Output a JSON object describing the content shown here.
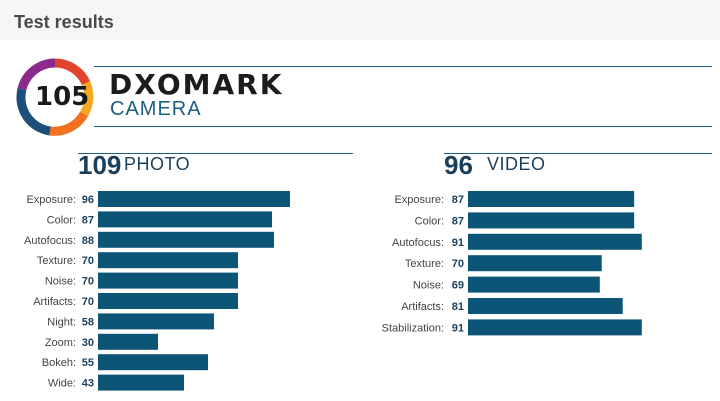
{
  "page": {
    "title": "Test results"
  },
  "brand": {
    "score": "105",
    "name": "DXOMARK",
    "subtitle": "CAMERA"
  },
  "colors": {
    "bar": "#0d5577",
    "accent": "#1e5e86"
  },
  "chart_data": [
    {
      "type": "bar",
      "orientation": "horizontal",
      "score": "109",
      "title": "PHOTO",
      "categories": [
        "Exposure:",
        "Color:",
        "Autofocus:",
        "Texture:",
        "Noise:",
        "Artifacts:",
        "Night:",
        "Zoom:",
        "Bokeh:",
        "Wide:"
      ],
      "values": [
        96,
        87,
        88,
        70,
        70,
        70,
        58,
        30,
        55,
        43
      ],
      "xlim": [
        0,
        100
      ],
      "grid": false,
      "legend": "none"
    },
    {
      "type": "bar",
      "orientation": "horizontal",
      "score": "96",
      "title": "VIDEO",
      "categories": [
        "Exposure:",
        "Color:",
        "Autofocus:",
        "Texture:",
        "Noise:",
        "Artifacts:",
        "Stabilization:"
      ],
      "values": [
        87,
        87,
        91,
        70,
        69,
        81,
        91
      ],
      "xlim": [
        0,
        100
      ],
      "grid": false,
      "legend": "none"
    }
  ]
}
